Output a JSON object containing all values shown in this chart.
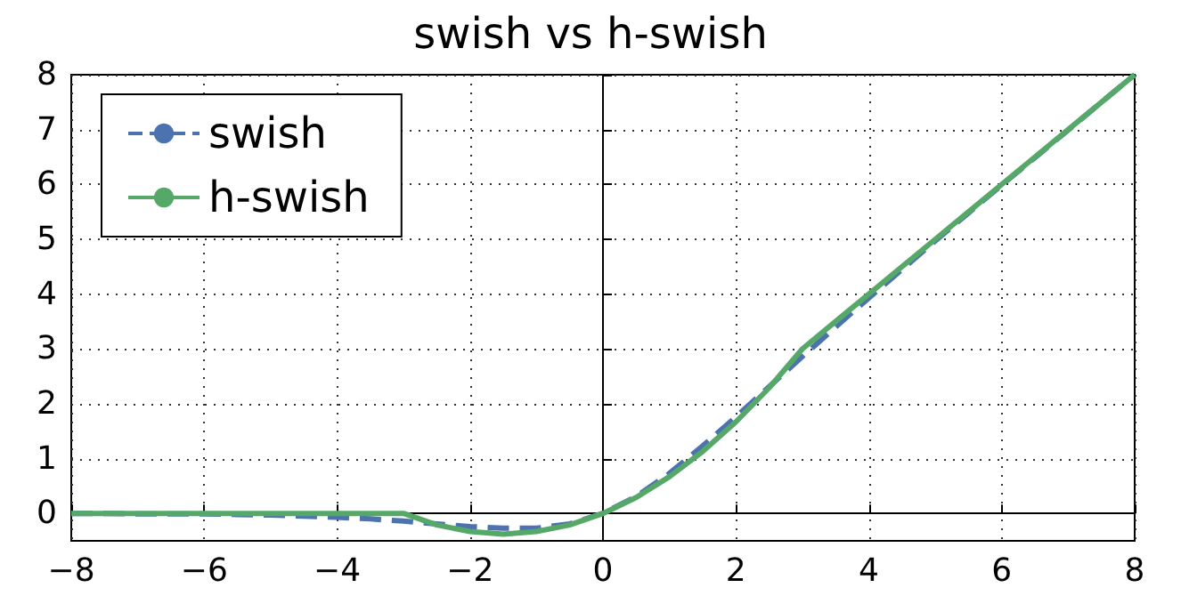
{
  "chart_data": {
    "type": "line",
    "title": "swish vs h-swish",
    "x": [
      -8,
      -7.5,
      -7,
      -6.5,
      -6,
      -5.5,
      -5,
      -4.5,
      -4,
      -3.5,
      -3,
      -2.5,
      -2,
      -1.5,
      -1,
      -0.5,
      0,
      0.5,
      1,
      1.5,
      2,
      2.5,
      3,
      3.5,
      4,
      4.5,
      5,
      5.5,
      6,
      6.5,
      7,
      7.5,
      8
    ],
    "series": [
      {
        "name": "swish",
        "color": "#4c72b0",
        "line_style": "dashed",
        "values": [
          0,
          0,
          -0.01,
          -0.01,
          -0.01,
          -0.02,
          -0.03,
          -0.05,
          -0.07,
          -0.1,
          -0.14,
          -0.19,
          -0.24,
          -0.27,
          -0.27,
          -0.19,
          0,
          0.31,
          0.73,
          1.23,
          1.76,
          2.31,
          2.86,
          3.4,
          3.93,
          4.45,
          4.97,
          5.48,
          5.99,
          6.49,
          6.99,
          7.5,
          8
        ]
      },
      {
        "name": "h-swish",
        "color": "#55a868",
        "line_style": "solid",
        "values": [
          0,
          0,
          0,
          0,
          0,
          0,
          0,
          0,
          0,
          0,
          0,
          -0.21,
          -0.33,
          -0.38,
          -0.33,
          -0.21,
          0,
          0.29,
          0.67,
          1.13,
          1.67,
          2.29,
          3,
          3.5,
          4,
          4.5,
          5,
          5.5,
          6,
          6.5,
          7,
          7.5,
          8
        ]
      }
    ],
    "xlim": [
      -8,
      8
    ],
    "xticks": [
      -8,
      -6,
      -4,
      -2,
      0,
      2,
      4,
      6,
      8
    ],
    "ylim": [
      -0.5,
      8
    ],
    "yticks": [
      0,
      1,
      2,
      3,
      4,
      5,
      6,
      7,
      8
    ],
    "grid": true,
    "legend": "top left",
    "marker": "none"
  }
}
